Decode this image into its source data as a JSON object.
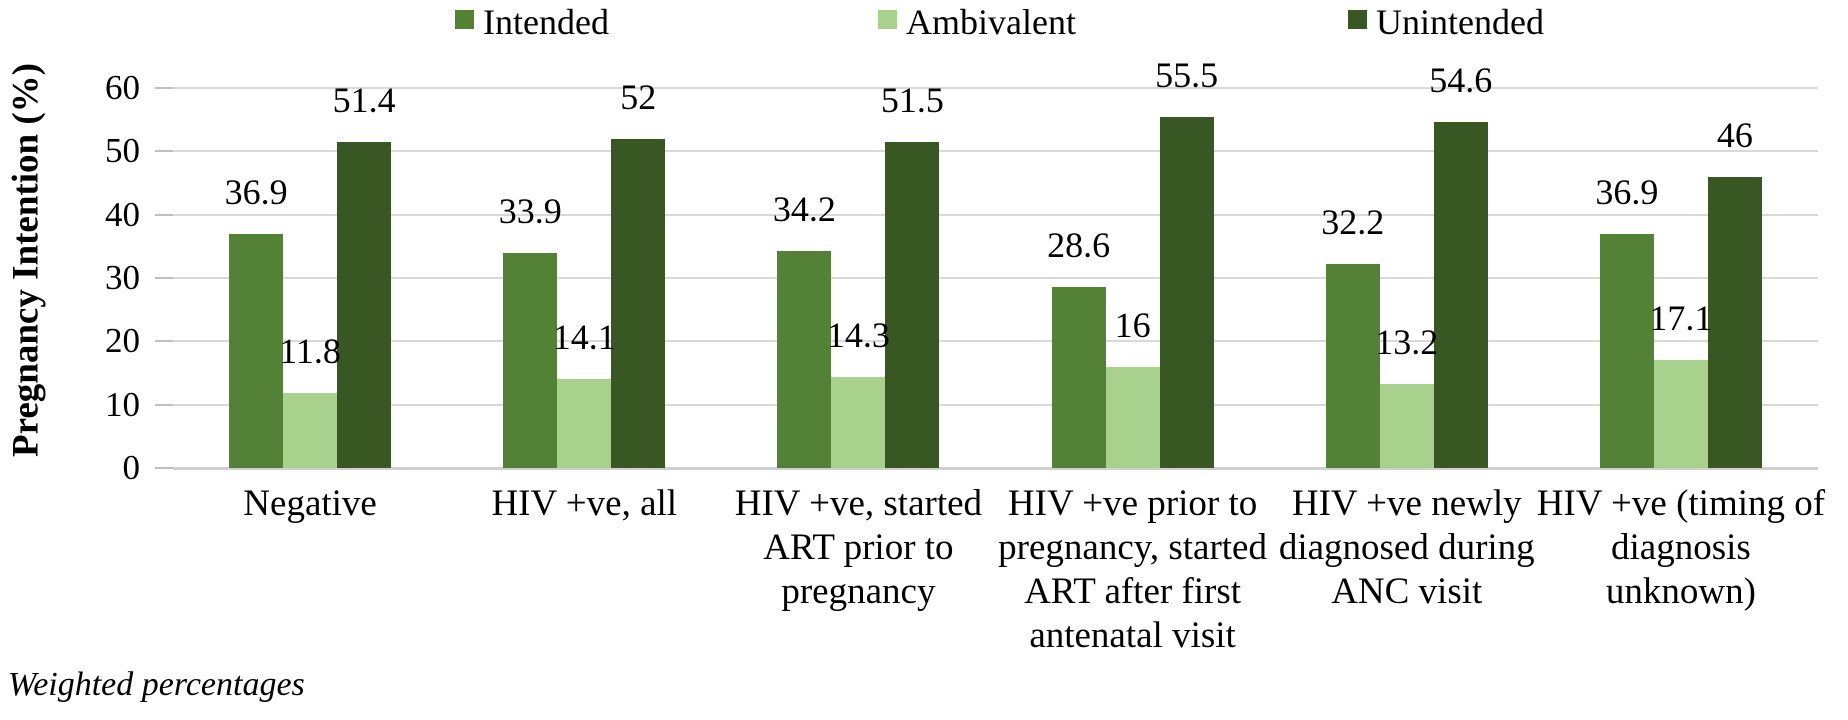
{
  "chart_data": {
    "type": "bar",
    "title": "",
    "xlabel": "",
    "ylabel": "Pregnancy Intention (%)",
    "ylim": [
      0,
      60
    ],
    "yticks": [
      0,
      10,
      20,
      30,
      40,
      50,
      60
    ],
    "grid": true,
    "legend_position": "top",
    "data_labels": true,
    "categories": [
      "Negative",
      "HIV +ve, all",
      "HIV +ve,  started ART prior to pregnancy",
      "HIV +ve prior to pregnancy, started ART after first antenatal visit",
      "HIV +ve newly diagnosed during ANC visit",
      "HIV +ve (timing of diagnosis unknown)"
    ],
    "series": [
      {
        "name": "Intended",
        "color": "#538135",
        "values": [
          36.9,
          33.9,
          34.2,
          28.6,
          32.2,
          36.9
        ]
      },
      {
        "name": "Ambivalent",
        "color": "#a9d18e",
        "values": [
          11.8,
          14.1,
          14.3,
          16,
          13.2,
          17.1
        ]
      },
      {
        "name": "Unintended",
        "color": "#385723",
        "values": [
          51.4,
          52,
          51.5,
          55.5,
          54.6,
          46
        ]
      }
    ]
  },
  "caption": "Weighted percentages",
  "colors": {
    "gridline": "#d9d9d9",
    "axis_line": "#cfcfcf",
    "tick_mark": "#bfbfbf",
    "text": "#000000"
  }
}
